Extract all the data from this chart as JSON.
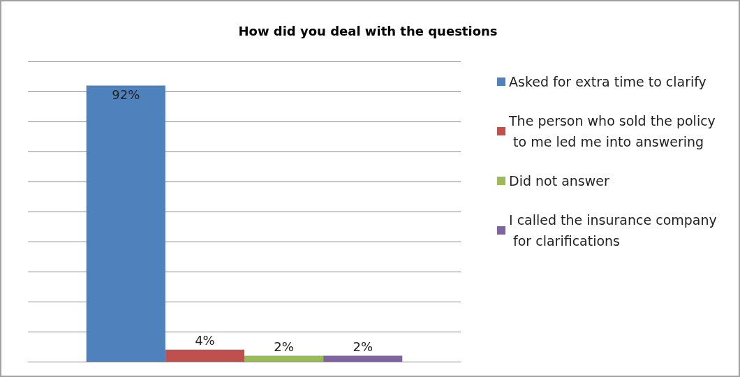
{
  "chart_data": {
    "type": "bar",
    "title": "How did you deal with the questions",
    "categories": [
      null
    ],
    "series": [
      {
        "name": "Asked for extra time to clarify",
        "color": "#4f81bd",
        "values": [
          92
        ],
        "value_labels": [
          "92%"
        ]
      },
      {
        "name": "The person who sold the policy to me led me into answering",
        "color": "#c0504d",
        "values": [
          4
        ],
        "value_labels": [
          "4%"
        ]
      },
      {
        "name": "Did not answer",
        "color": "#9bbb59",
        "values": [
          2
        ],
        "value_labels": [
          "2%"
        ]
      },
      {
        "name": "I called the insurance company for clarifications",
        "color": "#8064a2",
        "values": [
          2
        ],
        "value_labels": [
          "2%"
        ]
      }
    ],
    "ylim": [
      0,
      100
    ],
    "yticks": [
      {
        "value": 0,
        "label": null
      },
      {
        "value": 10,
        "label": null
      },
      {
        "value": 20,
        "label": null
      },
      {
        "value": 30,
        "label": null
      },
      {
        "value": 40,
        "label": null
      },
      {
        "value": 50,
        "label": null
      },
      {
        "value": 60,
        "label": null
      },
      {
        "value": 70,
        "label": null
      },
      {
        "value": 80,
        "label": null
      },
      {
        "value": 90,
        "label": null
      },
      {
        "value": 100,
        "label": null
      }
    ],
    "grid": "y",
    "legend": "right"
  }
}
